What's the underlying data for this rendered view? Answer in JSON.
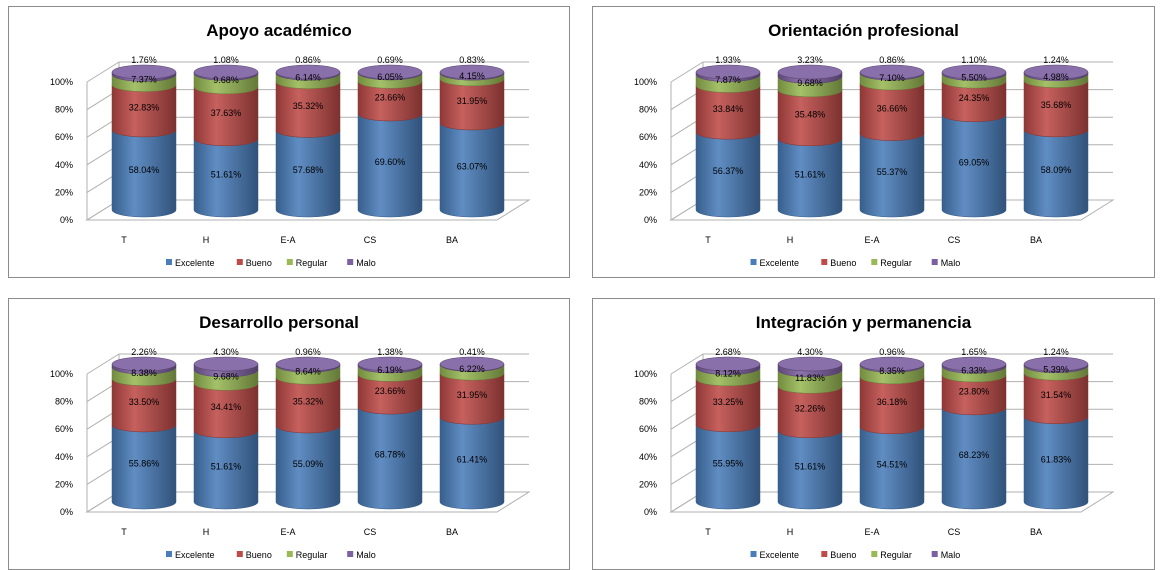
{
  "chart_data": [
    {
      "type": "bar",
      "stacked": true,
      "percent": true,
      "title": "Apoyo académico",
      "categories": [
        "T",
        "H",
        "E-A",
        "CS",
        "BA"
      ],
      "series": [
        {
          "name": "Excelente",
          "values": [
            58.04,
            51.61,
            57.68,
            69.6,
            63.07
          ],
          "labels": [
            "58.04%",
            "51.61%",
            "57.68%",
            "69.60%",
            "63.07%"
          ]
        },
        {
          "name": "Bueno",
          "values": [
            32.83,
            37.63,
            35.32,
            23.66,
            31.95
          ],
          "labels": [
            "32.83%",
            "37.63%",
            "35.32%",
            "23.66%",
            "31.95%"
          ]
        },
        {
          "name": "Regular",
          "values": [
            7.37,
            9.68,
            6.14,
            6.05,
            4.15
          ],
          "labels": [
            "7.37%",
            "9.68%",
            "6.14%",
            "6.05%",
            "4.15%"
          ]
        },
        {
          "name": "Malo",
          "values": [
            1.76,
            1.08,
            0.86,
            0.69,
            0.83
          ],
          "labels": [
            "1.76%",
            "1.08%",
            "0.86%",
            "0.69%",
            "0.83%"
          ]
        }
      ],
      "yticks": [
        "0%",
        "20%",
        "40%",
        "60%",
        "80%",
        "100%"
      ],
      "ylim": [
        0,
        100
      ]
    },
    {
      "type": "bar",
      "stacked": true,
      "percent": true,
      "title": "Orientación profesional",
      "categories": [
        "T",
        "H",
        "E-A",
        "CS",
        "BA"
      ],
      "series": [
        {
          "name": "Excelente",
          "values": [
            56.37,
            51.61,
            55.37,
            69.05,
            58.09
          ],
          "labels": [
            "56.37%",
            "51.61%",
            "55.37%",
            "69.05%",
            "58.09%"
          ]
        },
        {
          "name": "Bueno",
          "values": [
            33.84,
            35.48,
            36.66,
            24.35,
            35.68
          ],
          "labels": [
            "33.84%",
            "35.48%",
            "36.66%",
            "24.35%",
            "35.68%"
          ]
        },
        {
          "name": "Regular",
          "values": [
            7.87,
            9.68,
            7.1,
            5.5,
            4.98
          ],
          "labels": [
            "7.87%",
            "9.68%",
            "7.10%",
            "5.50%",
            "4.98%"
          ]
        },
        {
          "name": "Malo",
          "values": [
            1.93,
            3.23,
            0.86,
            1.1,
            1.24
          ],
          "labels": [
            "1.93%",
            "3.23%",
            "0.86%",
            "1.10%",
            "1.24%"
          ]
        }
      ],
      "yticks": [
        "0%",
        "20%",
        "40%",
        "60%",
        "80%",
        "100%"
      ],
      "ylim": [
        0,
        100
      ]
    },
    {
      "type": "bar",
      "stacked": true,
      "percent": true,
      "title": "Desarrollo personal",
      "categories": [
        "T",
        "H",
        "E-A",
        "CS",
        "BA"
      ],
      "series": [
        {
          "name": "Excelente",
          "values": [
            55.86,
            51.61,
            55.09,
            68.78,
            61.41
          ],
          "labels": [
            "55.86%",
            "51.61%",
            "55.09%",
            "68.78%",
            "61.41%"
          ]
        },
        {
          "name": "Bueno",
          "values": [
            33.5,
            34.41,
            35.32,
            23.66,
            31.95
          ],
          "labels": [
            "33.50%",
            "34.41%",
            "35.32%",
            "23.66%",
            "31.95%"
          ]
        },
        {
          "name": "Regular",
          "values": [
            8.38,
            9.68,
            8.64,
            6.19,
            6.22
          ],
          "labels": [
            "8.38%",
            "9.68%",
            "8.64%",
            "6.19%",
            "6.22%"
          ]
        },
        {
          "name": "Malo",
          "values": [
            2.26,
            4.3,
            0.96,
            1.38,
            0.41
          ],
          "labels": [
            "2.26%",
            "4.30%",
            "0.96%",
            "1.38%",
            "0.41%"
          ]
        }
      ],
      "yticks": [
        "0%",
        "20%",
        "40%",
        "60%",
        "80%",
        "100%"
      ],
      "ylim": [
        0,
        100
      ]
    },
    {
      "type": "bar",
      "stacked": true,
      "percent": true,
      "title": "Integración y permanencia",
      "categories": [
        "T",
        "H",
        "E-A",
        "CS",
        "BA"
      ],
      "series": [
        {
          "name": "Excelente",
          "values": [
            55.95,
            51.61,
            54.51,
            68.23,
            61.83
          ],
          "labels": [
            "55.95%",
            "51.61%",
            "54.51%",
            "68.23%",
            "61.83%"
          ]
        },
        {
          "name": "Bueno",
          "values": [
            33.25,
            32.26,
            36.18,
            23.8,
            31.54
          ],
          "labels": [
            "33.25%",
            "32.26%",
            "36.18%",
            "23.80%",
            "31.54%"
          ]
        },
        {
          "name": "Regular",
          "values": [
            8.12,
            11.83,
            8.35,
            6.33,
            5.39
          ],
          "labels": [
            "8.12%",
            "11.83%",
            "8.35%",
            "6.33%",
            "5.39%"
          ]
        },
        {
          "name": "Malo",
          "values": [
            2.68,
            4.3,
            0.96,
            1.65,
            1.24
          ],
          "labels": [
            "2.68%",
            "4.30%",
            "0.96%",
            "1.65%",
            "1.24%"
          ]
        }
      ],
      "yticks": [
        "0%",
        "20%",
        "40%",
        "60%",
        "80%",
        "100%"
      ],
      "ylim": [
        0,
        100
      ]
    }
  ],
  "colors": {
    "Excelente": "#4a7ebb",
    "Bueno": "#be4b48",
    "Regular": "#98b954",
    "Malo": "#7d60a0",
    "border": "#8c8c8c",
    "grid": "#b0b0b0"
  },
  "legend_position": "bottom",
  "grid": true
}
